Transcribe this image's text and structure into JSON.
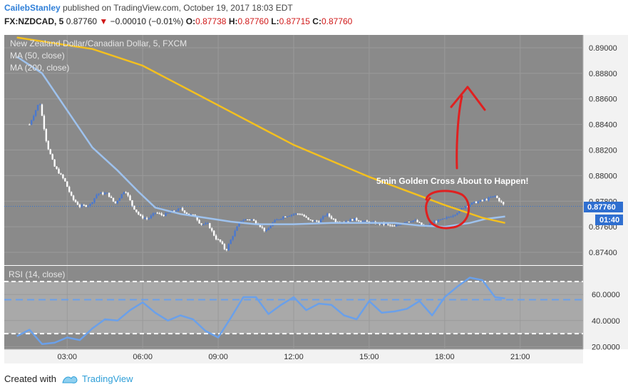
{
  "header": {
    "author": "CailebStanley",
    "published_text": "published on TradingView.com, October 19, 2017 18:03 EDT"
  },
  "quote": {
    "symbol": "FX:NZDCAD, 5",
    "last": "0.87760",
    "arrow": "▼",
    "change": "−0.00010 (−0.01%)",
    "o_label": "O:",
    "o_value": "0.87738",
    "h_label": "H:",
    "h_value": "0.87760",
    "l_label": "L:",
    "l_value": "0.87715",
    "c_label": "C:",
    "c_value": "0.87760"
  },
  "legend": {
    "title": "New Zealand Dollar/Canadian Dollar, 5, FXCM",
    "ma50": "MA (50, close)",
    "ma200": "MA (200, close)",
    "rsi": "RSI (14, close)"
  },
  "annotation": "5min Golden Cross About to Happen!",
  "price_tag": {
    "value": "0.87760",
    "countdown": "01:40"
  },
  "footer": {
    "created_with": "Created with",
    "brand": "TradingView"
  },
  "colors": {
    "ma50": "#f4c01e",
    "ma200": "#9ec2ee",
    "rsi": "#6aa0ea",
    "bull": "#4a78cf",
    "bear": "#ffffff",
    "annotation": "#e02020",
    "plot_bg": "#8a8a8a",
    "rsi_band": "#a9a9a9",
    "price_tag": "#2f6fd0"
  },
  "chart_data": {
    "type": "candlestick",
    "x_ticks": [
      "03:00",
      "06:00",
      "09:00",
      "12:00",
      "15:00",
      "18:00",
      "21:00"
    ],
    "y_ticks": [
      "0.89000",
      "0.88800",
      "0.88600",
      "0.88400",
      "0.88200",
      "0.88000",
      "0.87800",
      "0.87600",
      "0.87400"
    ],
    "ylim": [
      0.873,
      0.891
    ],
    "rsi_ticks": [
      "60.0000",
      "40.0000",
      "20.0000"
    ],
    "rsi_ylim": [
      18,
      82
    ],
    "rsi_bands": [
      70,
      30
    ],
    "rsi_midline": 56,
    "last_price": 0.8776,
    "price_path": [
      [
        1.5,
        0.884
      ],
      [
        1.9,
        0.8858
      ],
      [
        2.2,
        0.8824
      ],
      [
        2.5,
        0.8807
      ],
      [
        2.9,
        0.8796
      ],
      [
        3.2,
        0.8782
      ],
      [
        3.5,
        0.8776
      ],
      [
        3.9,
        0.8777
      ],
      [
        4.2,
        0.8786
      ],
      [
        4.6,
        0.8786
      ],
      [
        4.9,
        0.8778
      ],
      [
        5.3,
        0.8789
      ],
      [
        5.6,
        0.8776
      ],
      [
        5.9,
        0.8768
      ],
      [
        6.2,
        0.8766
      ],
      [
        6.5,
        0.8771
      ],
      [
        6.8,
        0.8769
      ],
      [
        7.2,
        0.8772
      ],
      [
        7.5,
        0.8774
      ],
      [
        7.8,
        0.877
      ],
      [
        8.1,
        0.8768
      ],
      [
        8.3,
        0.8762
      ],
      [
        8.6,
        0.8762
      ],
      [
        8.9,
        0.8751
      ],
      [
        9.1,
        0.8748
      ],
      [
        9.3,
        0.8741
      ],
      [
        9.6,
        0.8754
      ],
      [
        9.9,
        0.8765
      ],
      [
        10.3,
        0.8766
      ],
      [
        10.6,
        0.8762
      ],
      [
        10.9,
        0.8756
      ],
      [
        11.2,
        0.8764
      ],
      [
        11.6,
        0.8768
      ],
      [
        12.0,
        0.877
      ],
      [
        12.3,
        0.877
      ],
      [
        12.6,
        0.8765
      ],
      [
        13.0,
        0.8764
      ],
      [
        13.3,
        0.877
      ],
      [
        13.7,
        0.8764
      ],
      [
        14.0,
        0.8764
      ],
      [
        14.4,
        0.8766
      ],
      [
        14.8,
        0.8764
      ],
      [
        15.2,
        0.8763
      ],
      [
        15.6,
        0.8762
      ],
      [
        16.0,
        0.876
      ],
      [
        16.4,
        0.8764
      ],
      [
        16.8,
        0.8765
      ],
      [
        17.2,
        0.876
      ],
      [
        17.6,
        0.8764
      ],
      [
        18.0,
        0.8766
      ],
      [
        18.4,
        0.877
      ],
      [
        18.8,
        0.8776
      ],
      [
        19.2,
        0.8779
      ],
      [
        19.6,
        0.8781
      ],
      [
        20.0,
        0.8784
      ],
      [
        20.4,
        0.8776
      ]
    ],
    "ma200_path": [
      [
        1.0,
        0.8908
      ],
      [
        4.0,
        0.8899
      ],
      [
        6.0,
        0.8886
      ],
      [
        9.0,
        0.8855
      ],
      [
        12.0,
        0.8824
      ],
      [
        15.0,
        0.8799
      ],
      [
        18.0,
        0.8777
      ],
      [
        19.5,
        0.8767
      ],
      [
        20.4,
        0.8763
      ]
    ],
    "ma50_path": [
      [
        1.0,
        0.8893
      ],
      [
        2.0,
        0.888
      ],
      [
        3.0,
        0.8851
      ],
      [
        4.0,
        0.8822
      ],
      [
        5.0,
        0.8804
      ],
      [
        5.8,
        0.8788
      ],
      [
        6.5,
        0.8775
      ],
      [
        7.5,
        0.877
      ],
      [
        8.5,
        0.8767
      ],
      [
        9.5,
        0.8764
      ],
      [
        10.5,
        0.8762
      ],
      [
        12.0,
        0.8762
      ],
      [
        13.5,
        0.8763
      ],
      [
        15.0,
        0.8763
      ],
      [
        16.0,
        0.8763
      ],
      [
        17.0,
        0.8761
      ],
      [
        18.0,
        0.876
      ],
      [
        19.0,
        0.8763
      ],
      [
        19.6,
        0.8766
      ],
      [
        20.4,
        0.8768
      ]
    ],
    "rsi_path": [
      [
        1.0,
        28
      ],
      [
        1.5,
        33
      ],
      [
        2.0,
        22
      ],
      [
        2.5,
        23
      ],
      [
        3.0,
        27
      ],
      [
        3.5,
        25
      ],
      [
        4.0,
        34
      ],
      [
        4.5,
        41
      ],
      [
        5.0,
        40
      ],
      [
        5.5,
        48
      ],
      [
        6.0,
        54
      ],
      [
        6.5,
        46
      ],
      [
        7.0,
        40
      ],
      [
        7.5,
        44
      ],
      [
        8.0,
        41
      ],
      [
        8.5,
        32
      ],
      [
        9.0,
        27
      ],
      [
        9.5,
        42
      ],
      [
        10.0,
        58
      ],
      [
        10.5,
        58
      ],
      [
        11.0,
        45
      ],
      [
        11.5,
        52
      ],
      [
        12.0,
        58
      ],
      [
        12.5,
        48
      ],
      [
        13.0,
        53
      ],
      [
        13.5,
        52
      ],
      [
        14.0,
        44
      ],
      [
        14.5,
        41
      ],
      [
        15.0,
        55
      ],
      [
        15.5,
        46
      ],
      [
        16.0,
        47
      ],
      [
        16.5,
        49
      ],
      [
        17.0,
        55
      ],
      [
        17.5,
        44
      ],
      [
        18.0,
        58
      ],
      [
        18.5,
        66
      ],
      [
        19.0,
        73
      ],
      [
        19.5,
        71
      ],
      [
        20.0,
        58
      ],
      [
        20.4,
        57
      ]
    ]
  }
}
